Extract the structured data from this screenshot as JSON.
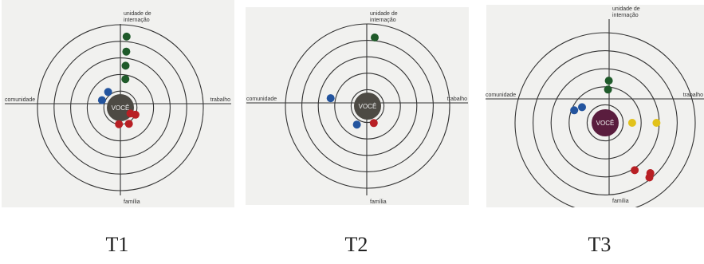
{
  "axis_labels": {
    "top": [
      "unidade de",
      "internação"
    ],
    "left": "comunidade",
    "right": "trabalho",
    "bottom": "família"
  },
  "center_label": "VOCÊ",
  "colors": {
    "green": "#1f5a2a",
    "blue": "#23549e",
    "red": "#b81f24",
    "yellow": "#e2c21b",
    "center_gray": "#4d4a44",
    "center_purple": "#5a1d3e",
    "paper": "#f1f1ef",
    "line": "#333333"
  },
  "panels": [
    {
      "id": "T1",
      "caption": "T1",
      "center_color": "center_gray",
      "dots": [
        {
          "color": "green",
          "r": 0.86,
          "angle_deg": 85
        },
        {
          "color": "green",
          "r": 0.68,
          "angle_deg": 84
        },
        {
          "color": "green",
          "r": 0.51,
          "angle_deg": 83
        },
        {
          "color": "green",
          "r": 0.35,
          "angle_deg": 80
        },
        {
          "color": "blue",
          "r": 0.24,
          "angle_deg": 128
        },
        {
          "color": "blue",
          "r": 0.24,
          "angle_deg": 158
        },
        {
          "color": "red",
          "r": 0.14,
          "angle_deg": -30
        },
        {
          "color": "red",
          "r": 0.2,
          "angle_deg": -25
        },
        {
          "color": "red",
          "r": 0.22,
          "angle_deg": -62
        },
        {
          "color": "red",
          "r": 0.2,
          "angle_deg": -95
        }
      ]
    },
    {
      "id": "T2",
      "caption": "T2",
      "center_color": "center_gray",
      "dots": [
        {
          "color": "green",
          "r": 0.84,
          "angle_deg": 84
        },
        {
          "color": "blue",
          "r": 0.46,
          "angle_deg": 168
        },
        {
          "color": "blue",
          "r": 0.26,
          "angle_deg": -120
        },
        {
          "color": "red",
          "r": 0.22,
          "angle_deg": -70
        }
      ]
    },
    {
      "id": "T3",
      "caption": "T3",
      "center_color": "center_purple",
      "dots": [
        {
          "color": "green",
          "r": 0.47,
          "angle_deg": 85
        },
        {
          "color": "green",
          "r": 0.37,
          "angle_deg": 85
        },
        {
          "color": "blue",
          "r": 0.31,
          "angle_deg": 146
        },
        {
          "color": "blue",
          "r": 0.37,
          "angle_deg": 158
        },
        {
          "color": "yellow",
          "r": 0.3,
          "angle_deg": 0
        },
        {
          "color": "yellow",
          "r": 0.57,
          "angle_deg": 0
        },
        {
          "color": "red",
          "r": 0.62,
          "angle_deg": -58
        },
        {
          "color": "red",
          "r": 0.75,
          "angle_deg": -48
        },
        {
          "color": "red",
          "r": 0.78,
          "angle_deg": -51
        }
      ]
    }
  ]
}
